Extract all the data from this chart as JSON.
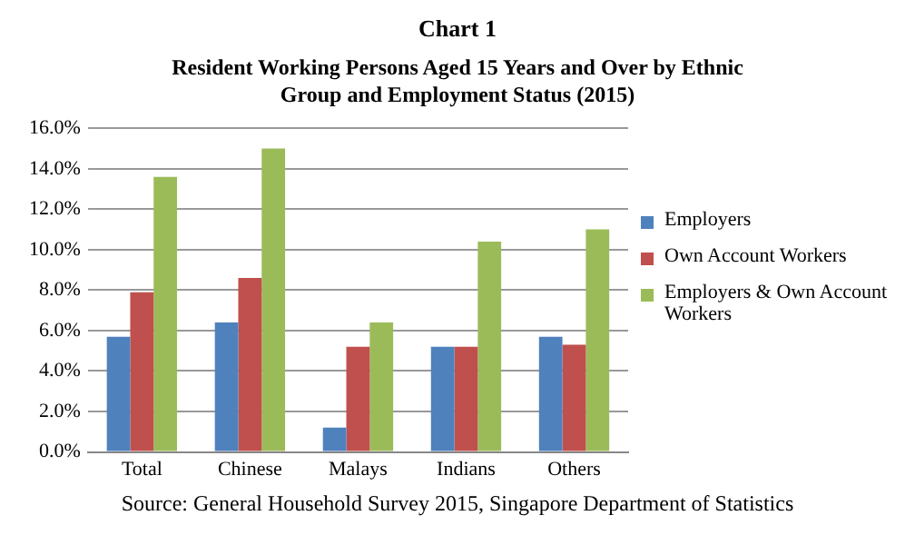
{
  "chart_data": {
    "type": "bar",
    "title": "Chart 1",
    "subtitle": "Resident Working Persons Aged 15 Years and Over by Ethnic Group and Employment Status (2015)",
    "categories": [
      "Total",
      "Chinese",
      "Malays",
      "Indians",
      "Others"
    ],
    "series": [
      {
        "name": "Employers",
        "color": "#4f81bd",
        "values": [
          5.7,
          6.4,
          1.2,
          5.2,
          5.7
        ]
      },
      {
        "name": "Own Account Workers",
        "color": "#c0504d",
        "values": [
          7.9,
          8.6,
          5.2,
          5.2,
          5.3
        ]
      },
      {
        "name": "Employers & Own Account Workers",
        "color": "#9bbb59",
        "values": [
          13.6,
          15.0,
          6.4,
          10.4,
          11.0
        ]
      }
    ],
    "ylim": [
      0,
      16
    ],
    "yticks": [
      {
        "value": 0,
        "label": "0.0%"
      },
      {
        "value": 2,
        "label": "2.0%"
      },
      {
        "value": 4,
        "label": "4.0%"
      },
      {
        "value": 6,
        "label": "6.0%"
      },
      {
        "value": 8,
        "label": "8.0%"
      },
      {
        "value": 10,
        "label": "10.0%"
      },
      {
        "value": 12,
        "label": "12.0%"
      },
      {
        "value": 14,
        "label": "14.0%"
      },
      {
        "value": 16,
        "label": "16.0%"
      }
    ],
    "grid": "y",
    "legend": "right",
    "annotations": [
      "Source: General Household Survey 2015, Singapore Department of Statistics"
    ]
  }
}
